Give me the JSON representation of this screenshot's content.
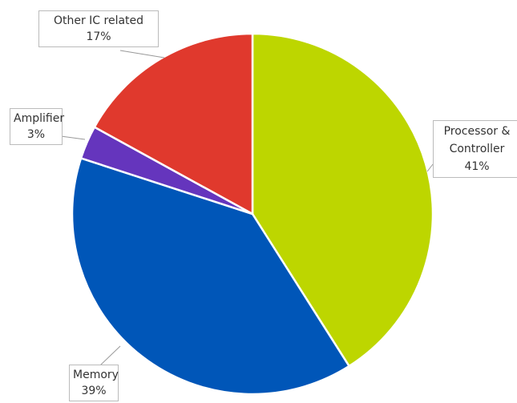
{
  "chart_data": {
    "type": "pie",
    "categories": [
      "Processor & Controller",
      "Memory",
      "Amplifier",
      "Other IC related"
    ],
    "values": [
      41,
      39,
      3,
      17
    ],
    "value_labels": [
      "41%",
      "39%",
      "3%",
      "17%"
    ],
    "colors": [
      "#bdd600",
      "#0056b8",
      "#6535bd",
      "#e0392d"
    ]
  }
}
